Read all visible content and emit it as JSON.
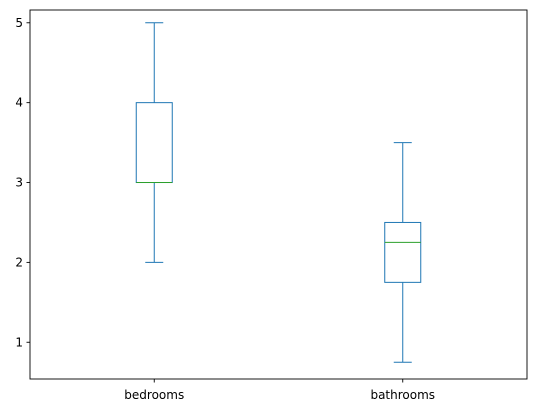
{
  "chart_data": {
    "type": "box",
    "title": "",
    "xlabel": "",
    "ylabel": "",
    "categories": [
      "bedrooms",
      "bathrooms"
    ],
    "boxes": [
      {
        "name": "bedrooms",
        "whisker_low": 2,
        "q1": 3,
        "median": 3,
        "q3": 4,
        "whisker_high": 5
      },
      {
        "name": "bathrooms",
        "whisker_low": 0.75,
        "q1": 1.75,
        "median": 2.25,
        "q3": 2.5,
        "whisker_high": 3.5
      }
    ],
    "ylim": [
      0.54,
      5.16
    ],
    "yticks": [
      1,
      2,
      3,
      4,
      5
    ],
    "grid": false,
    "colors": {
      "box": "#1f77b4",
      "median": "#2ca02c",
      "axis": "#000000"
    }
  }
}
